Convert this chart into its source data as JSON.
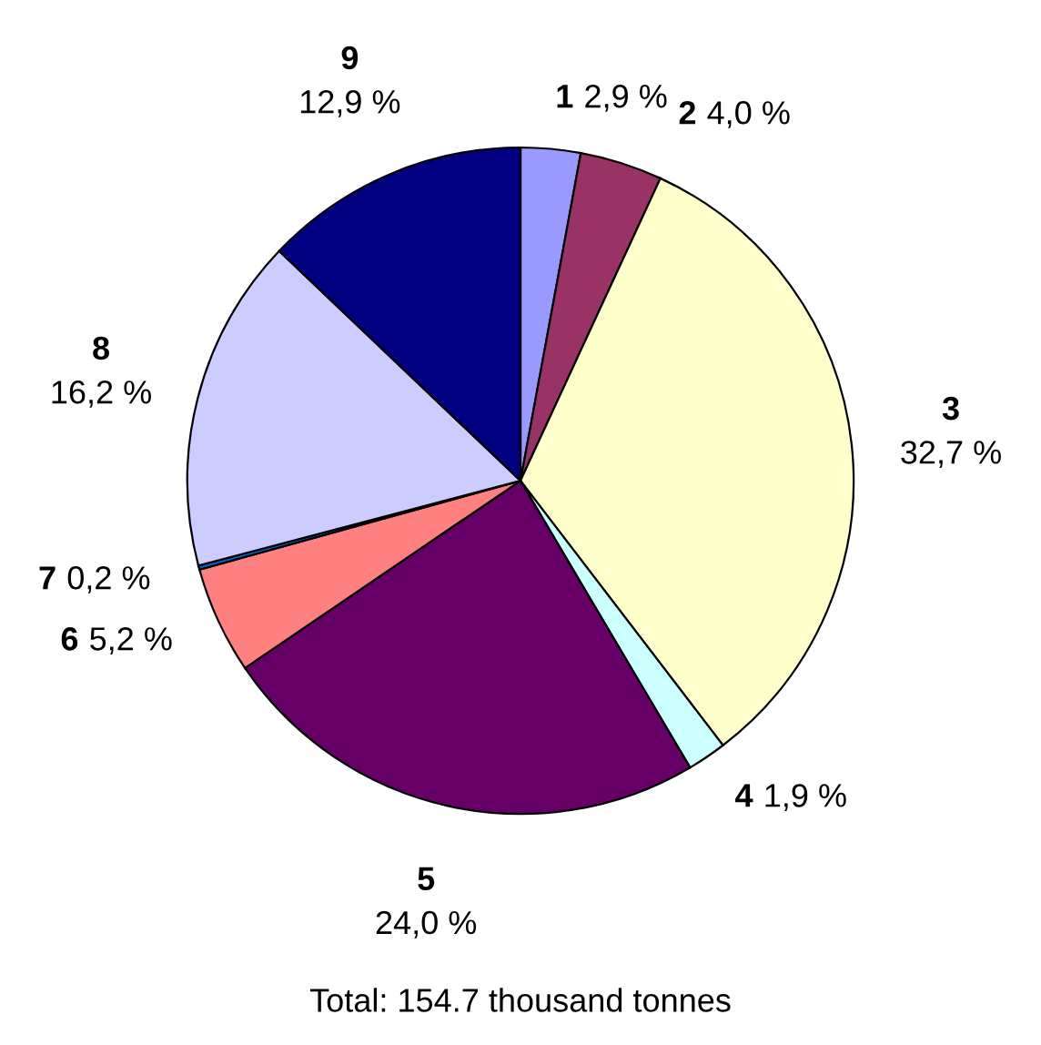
{
  "chart_data": {
    "type": "pie",
    "categories": [
      "1",
      "2",
      "3",
      "4",
      "5",
      "6",
      "7",
      "8",
      "9"
    ],
    "values": [
      2.9,
      4.0,
      32.7,
      1.9,
      24.0,
      5.2,
      0.2,
      16.2,
      12.9
    ],
    "value_labels": [
      "2,9 %",
      "4,0 %",
      "32,7 %",
      "1,9 %",
      "24,0 %",
      "5,2 %",
      "0,2 %",
      "16,2 %",
      "12,9 %"
    ],
    "colors": [
      "#9999ff",
      "#993366",
      "#ffffcc",
      "#ccffff",
      "#660066",
      "#ff8080",
      "#0066cc",
      "#ccccff",
      "#000080"
    ],
    "annotations": [
      "Total: 154.7 thousand tonnes"
    ]
  }
}
